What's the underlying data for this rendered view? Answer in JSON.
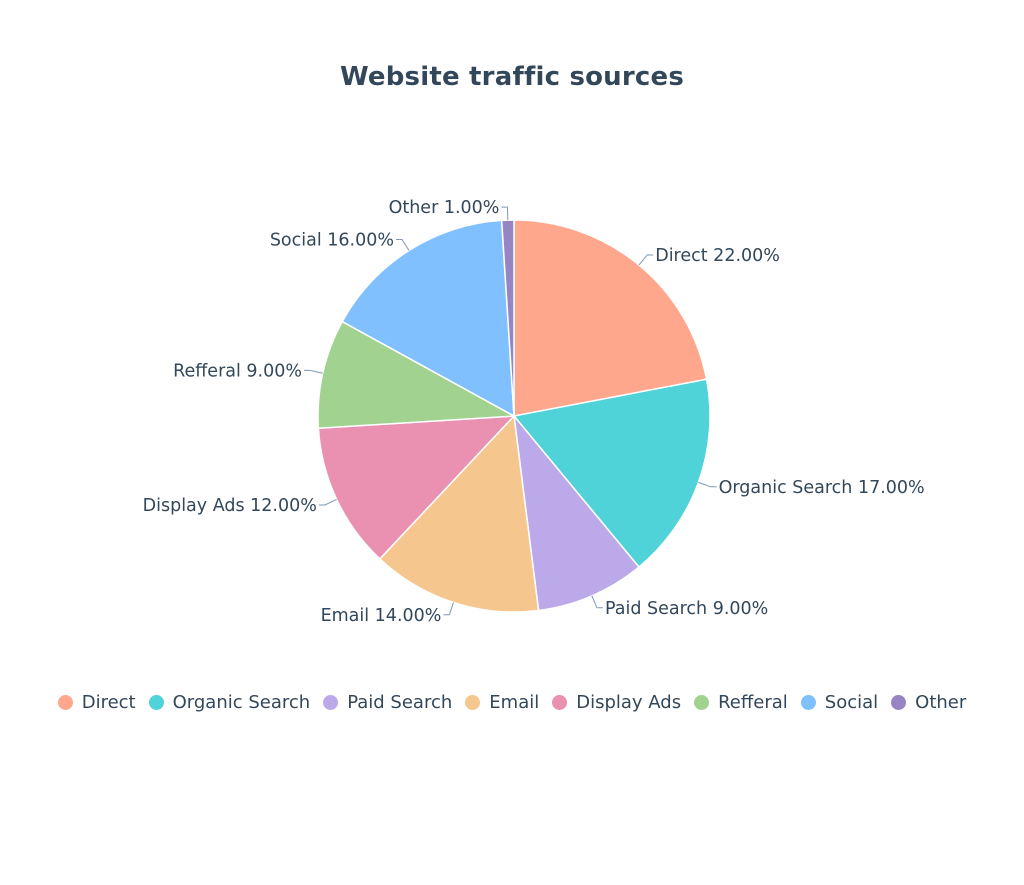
{
  "chart_data": {
    "type": "pie",
    "title": "Website traffic sources",
    "categories": [
      "Direct",
      "Organic Search",
      "Paid Search",
      "Email",
      "Display Ads",
      "Refferal",
      "Social",
      "Other"
    ],
    "values": [
      22.0,
      17.0,
      9.0,
      14.0,
      12.0,
      9.0,
      16.0,
      1.0
    ],
    "data_labels": [
      "Direct 22.00%",
      "Organic Search 17.00%",
      "Paid Search 9.00%",
      "Email 14.00%",
      "Display Ads 12.00%",
      "Refferal 9.00%",
      "Social 16.00%",
      "Other 1.00%"
    ],
    "colors": [
      "#ffa78d",
      "#4fd3d9",
      "#bca9ea",
      "#f5c78e",
      "#ea90b1",
      "#a2d28f",
      "#80c0ff",
      "#9784c3"
    ],
    "legend": {
      "placement": "bottom",
      "entries": [
        "Direct",
        "Organic Search",
        "Paid Search",
        "Email",
        "Display Ads",
        "Refferal",
        "Social",
        "Other"
      ]
    }
  }
}
